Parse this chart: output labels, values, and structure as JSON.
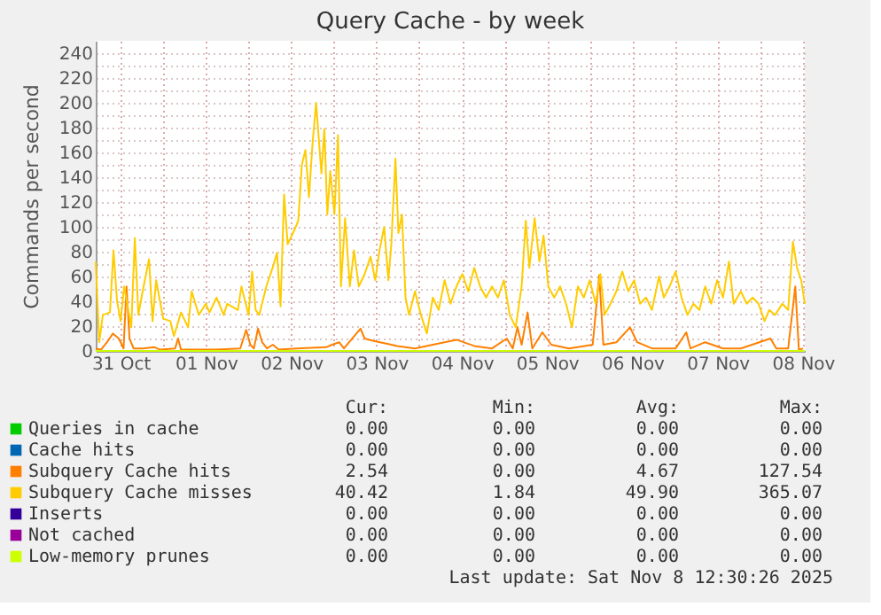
{
  "chart_data": {
    "type": "line",
    "title": "Query Cache - by week",
    "ylabel": "Commands per second",
    "xlim": [
      "2025-10-31T05:00",
      "2025-11-08T12:30"
    ],
    "xticks": [
      {
        "value": "2025-10-31T12:00",
        "label": "31 Oct"
      },
      {
        "value": "2025-11-01T00:00",
        "label": null
      },
      {
        "value": "2025-11-01T12:00",
        "label": "01 Nov"
      },
      {
        "value": "2025-11-02T00:00",
        "label": null
      },
      {
        "value": "2025-11-02T12:00",
        "label": "02 Nov"
      },
      {
        "value": "2025-11-03T00:00",
        "label": null
      },
      {
        "value": "2025-11-03T12:00",
        "label": "03 Nov"
      },
      {
        "value": "2025-11-04T00:00",
        "label": null
      },
      {
        "value": "2025-11-04T12:00",
        "label": "04 Nov"
      },
      {
        "value": "2025-11-05T00:00",
        "label": null
      },
      {
        "value": "2025-11-05T12:00",
        "label": "05 Nov"
      },
      {
        "value": "2025-11-06T00:00",
        "label": null
      },
      {
        "value": "2025-11-06T12:00",
        "label": "06 Nov"
      },
      {
        "value": "2025-11-07T00:00",
        "label": null
      },
      {
        "value": "2025-11-07T12:00",
        "label": "07 Nov"
      },
      {
        "value": "2025-11-08T00:00",
        "label": null
      },
      {
        "value": "2025-11-08T12:00",
        "label": "08 Nov"
      }
    ],
    "ylim": [
      0,
      250
    ],
    "yticks": [
      0,
      {
        "value": 10,
        "label": null
      },
      20,
      {
        "value": 30,
        "label": null
      },
      40,
      {
        "value": 50,
        "label": null
      },
      60,
      {
        "value": 70,
        "label": null
      },
      80,
      {
        "value": 90,
        "label": null
      },
      100,
      {
        "value": 110,
        "label": null
      },
      120,
      {
        "value": 130,
        "label": null
      },
      140,
      {
        "value": 150,
        "label": null
      },
      160,
      {
        "value": 170,
        "label": null
      },
      180,
      {
        "value": 190,
        "label": null
      },
      200,
      {
        "value": 210,
        "label": null
      },
      220,
      {
        "value": 230,
        "label": null
      },
      240
    ],
    "grid": true,
    "legend": "bottom",
    "line_style": "solid",
    "series": [
      {
        "name": "Queries in cache",
        "color": "#00cc00",
        "values": [
          null
        ]
      },
      {
        "name": "Cache hits",
        "color": "#0066b3",
        "values": [
          null
        ]
      },
      {
        "name": "Subquery Cache hits",
        "color": "#ff8000",
        "x": [
          "2025-10-31T05:00",
          "2025-10-31T06:30",
          "2025-10-31T08:10",
          "2025-10-31T09:50",
          "2025-10-31T11:30",
          "2025-10-31T12:50",
          "2025-10-31T13:40",
          "2025-10-31T14:30",
          "2025-10-31T15:40",
          "2025-10-31T18:10",
          "2025-10-31T21:30",
          "2025-10-31T23:10",
          "2025-11-01T03:20",
          "2025-11-01T04:10",
          "2025-11-01T05:00",
          "2025-11-01T14:10",
          "2025-11-01T21:40",
          "2025-11-01T23:20",
          "2025-11-02T00:30",
          "2025-11-02T01:30",
          "2025-11-02T02:40",
          "2025-11-02T03:50",
          "2025-11-02T05:10",
          "2025-11-02T06:50",
          "2025-11-02T08:30",
          "2025-11-02T13:30",
          "2025-11-02T21:50",
          "2025-11-02T23:30",
          "2025-11-03T01:30",
          "2025-11-03T02:50",
          "2025-11-03T07:30",
          "2025-11-03T08:40",
          "2025-11-03T11:10",
          "2025-11-03T14:30",
          "2025-11-03T17:50",
          "2025-11-03T22:50",
          "2025-11-04T03:50",
          "2025-11-04T10:30",
          "2025-11-04T15:30",
          "2025-11-04T20:30",
          "2025-11-05T00:40",
          "2025-11-05T02:20",
          "2025-11-05T03:40",
          "2025-11-05T04:50",
          "2025-11-05T06:30",
          "2025-11-05T07:50",
          "2025-11-05T10:40",
          "2025-11-05T13:10",
          "2025-11-05T18:10",
          "2025-11-06T00:50",
          "2025-11-06T02:40",
          "2025-11-06T03:50",
          "2025-11-06T07:30",
          "2025-11-06T11:20",
          "2025-11-06T13:20",
          "2025-11-06T17:30",
          "2025-11-07T00:10",
          "2025-11-07T03:10",
          "2025-11-07T04:20",
          "2025-11-07T08:30",
          "2025-11-07T13:30",
          "2025-11-07T18:30",
          "2025-11-08T02:50",
          "2025-11-08T04:30",
          "2025-11-08T07:50",
          "2025-11-08T09:50",
          "2025-11-08T10:50",
          "2025-11-08T12:00"
        ],
        "values": [
          2,
          1,
          7,
          14,
          10,
          2,
          52,
          10,
          2,
          2,
          3,
          1,
          2,
          10,
          1,
          1,
          2,
          17,
          5,
          2,
          18,
          7,
          2,
          5,
          1,
          2,
          3,
          5,
          7,
          2,
          18,
          10,
          8,
          6,
          4,
          2,
          5,
          9,
          4,
          2,
          10,
          2,
          19,
          5,
          31,
          2,
          15,
          5,
          2,
          5,
          61,
          5,
          7,
          19,
          7,
          2,
          2,
          15,
          2,
          7,
          2,
          2,
          10,
          2,
          2,
          52,
          1,
          2
        ]
      },
      {
        "name": "Subquery Cache misses",
        "color": "#ffcc00",
        "x": [
          "2025-10-31T05:00",
          "2025-10-31T06:00",
          "2025-10-31T07:00",
          "2025-10-31T09:00",
          "2025-10-31T10:00",
          "2025-10-31T11:00",
          "2025-10-31T12:00",
          "2025-10-31T13:00",
          "2025-10-31T15:00",
          "2025-10-31T16:00",
          "2025-10-31T17:00",
          "2025-10-31T18:00",
          "2025-10-31T20:00",
          "2025-10-31T21:00",
          "2025-10-31T22:00",
          "2025-11-01T00:00",
          "2025-11-01T02:00",
          "2025-11-01T03:00",
          "2025-11-01T05:00",
          "2025-11-01T07:00",
          "2025-11-01T08:00",
          "2025-11-01T10:00",
          "2025-11-01T12:00",
          "2025-11-01T13:00",
          "2025-11-01T15:00",
          "2025-11-01T17:00",
          "2025-11-01T18:00",
          "2025-11-01T21:00",
          "2025-11-01T22:00",
          "2025-11-02T00:00",
          "2025-11-02T01:00",
          "2025-11-02T02:00",
          "2025-11-02T03:00",
          "2025-11-02T05:00",
          "2025-11-02T07:00",
          "2025-11-02T08:00",
          "2025-11-02T09:00",
          "2025-11-02T10:00",
          "2025-11-02T11:00",
          "2025-11-02T13:00",
          "2025-11-02T14:00",
          "2025-11-02T15:00",
          "2025-11-02T16:00",
          "2025-11-02T17:00",
          "2025-11-02T18:00",
          "2025-11-02T19:00",
          "2025-11-02T20:30",
          "2025-11-02T21:20",
          "2025-11-02T22:10",
          "2025-11-02T23:00",
          "2025-11-03T00:10",
          "2025-11-03T01:10",
          "2025-11-03T02:00",
          "2025-11-03T03:10",
          "2025-11-03T04:30",
          "2025-11-03T05:40",
          "2025-11-03T07:00",
          "2025-11-03T08:40",
          "2025-11-03T10:20",
          "2025-11-03T11:40",
          "2025-11-03T12:50",
          "2025-11-03T14:10",
          "2025-11-03T15:20",
          "2025-11-03T16:10",
          "2025-11-03T17:20",
          "2025-11-03T18:10",
          "2025-11-03T19:10",
          "2025-11-03T20:10",
          "2025-11-03T21:10",
          "2025-11-03T22:50",
          "2025-11-04T00:30",
          "2025-11-04T02:10",
          "2025-11-04T03:50",
          "2025-11-04T05:30",
          "2025-11-04T07:10",
          "2025-11-04T08:50",
          "2025-11-04T10:30",
          "2025-11-04T12:10",
          "2025-11-04T13:50",
          "2025-11-04T15:30",
          "2025-11-04T17:10",
          "2025-11-04T18:50",
          "2025-11-04T20:30",
          "2025-11-04T22:10",
          "2025-11-04T23:50",
          "2025-11-05T01:30",
          "2025-11-05T03:10",
          "2025-11-05T04:50",
          "2025-11-05T06:00",
          "2025-11-05T07:00",
          "2025-11-05T08:30",
          "2025-11-05T09:50",
          "2025-11-05T11:00",
          "2025-11-05T12:20",
          "2025-11-05T14:00",
          "2025-11-05T15:40",
          "2025-11-05T17:20",
          "2025-11-05T19:00",
          "2025-11-05T20:40",
          "2025-11-05T22:20",
          "2025-11-06T00:00",
          "2025-11-06T01:40",
          "2025-11-06T03:00",
          "2025-11-06T04:10",
          "2025-11-06T05:50",
          "2025-11-06T07:30",
          "2025-11-06T09:10",
          "2025-11-06T10:50",
          "2025-11-06T12:30",
          "2025-11-06T14:10",
          "2025-11-06T15:50",
          "2025-11-06T17:30",
          "2025-11-06T19:30",
          "2025-11-06T20:50",
          "2025-11-06T22:30",
          "2025-11-07T00:10",
          "2025-11-07T01:50",
          "2025-11-07T03:30",
          "2025-11-07T05:10",
          "2025-11-07T06:50",
          "2025-11-07T08:30",
          "2025-11-07T10:10",
          "2025-11-07T11:50",
          "2025-11-07T13:30",
          "2025-11-07T15:10",
          "2025-11-07T16:30",
          "2025-11-07T18:30",
          "2025-11-07T20:10",
          "2025-11-07T21:50",
          "2025-11-07T23:30",
          "2025-11-08T01:10",
          "2025-11-08T02:30",
          "2025-11-08T04:10",
          "2025-11-08T06:10",
          "2025-11-08T07:50",
          "2025-11-08T09:10",
          "2025-11-08T10:20",
          "2025-11-08T11:30",
          "2025-11-08T12:30"
        ],
        "values": [
          72,
          7,
          29,
          31,
          81,
          40,
          24,
          52,
          19,
          91,
          29,
          45,
          74,
          24,
          57,
          26,
          24,
          12,
          31,
          19,
          48,
          29,
          38,
          31,
          43,
          29,
          38,
          33,
          52,
          29,
          64,
          33,
          29,
          52,
          69,
          79,
          36,
          126,
          86,
          98,
          105,
          150,
          162,
          124,
          167,
          200,
          143,
          179,
          110,
          145,
          110,
          174,
          52,
          107,
          52,
          81,
          52,
          62,
          76,
          57,
          81,
          100,
          57,
          86,
          155,
          95,
          110,
          43,
          29,
          48,
          29,
          14,
          43,
          33,
          57,
          38,
          52,
          62,
          48,
          67,
          52,
          43,
          52,
          43,
          57,
          29,
          19,
          52,
          105,
          67,
          107,
          72,
          93,
          52,
          43,
          52,
          38,
          19,
          52,
          43,
          57,
          38,
          62,
          29,
          38,
          48,
          64,
          48,
          57,
          38,
          43,
          33,
          60,
          43,
          52,
          64,
          43,
          29,
          38,
          33,
          52,
          38,
          57,
          43,
          72,
          38,
          48,
          38,
          43,
          38,
          24,
          33,
          29,
          38,
          33,
          88,
          67,
          57,
          38
        ]
      },
      {
        "name": "Inserts",
        "color": "#330099",
        "values": [
          null
        ]
      },
      {
        "name": "Not cached",
        "color": "#990099",
        "values": [
          null
        ]
      },
      {
        "name": "Low-memory prunes",
        "color": "#ccff00",
        "x": [
          "2025-10-31T05:00",
          "2025-11-08T12:30"
        ],
        "values": [
          0,
          0
        ]
      }
    ],
    "annotations": [
      "Cur:",
      "Min:",
      "Avg:",
      "Max:",
      "0.00",
      "0.00",
      "0.00",
      "0.00",
      "0.00",
      "0.00",
      "0.00",
      "0.00",
      "2.54",
      "0.00",
      "4.67",
      "127.54",
      "40.42",
      "1.84",
      "49.90",
      "365.07",
      "0.00",
      "0.00",
      "0.00",
      "0.00",
      "0.00",
      "0.00",
      "0.00",
      "0.00",
      "0.00",
      "0.00",
      "0.00",
      "0.00",
      "Last update: Sat Nov  8 12:30:26 2025"
    ]
  }
}
